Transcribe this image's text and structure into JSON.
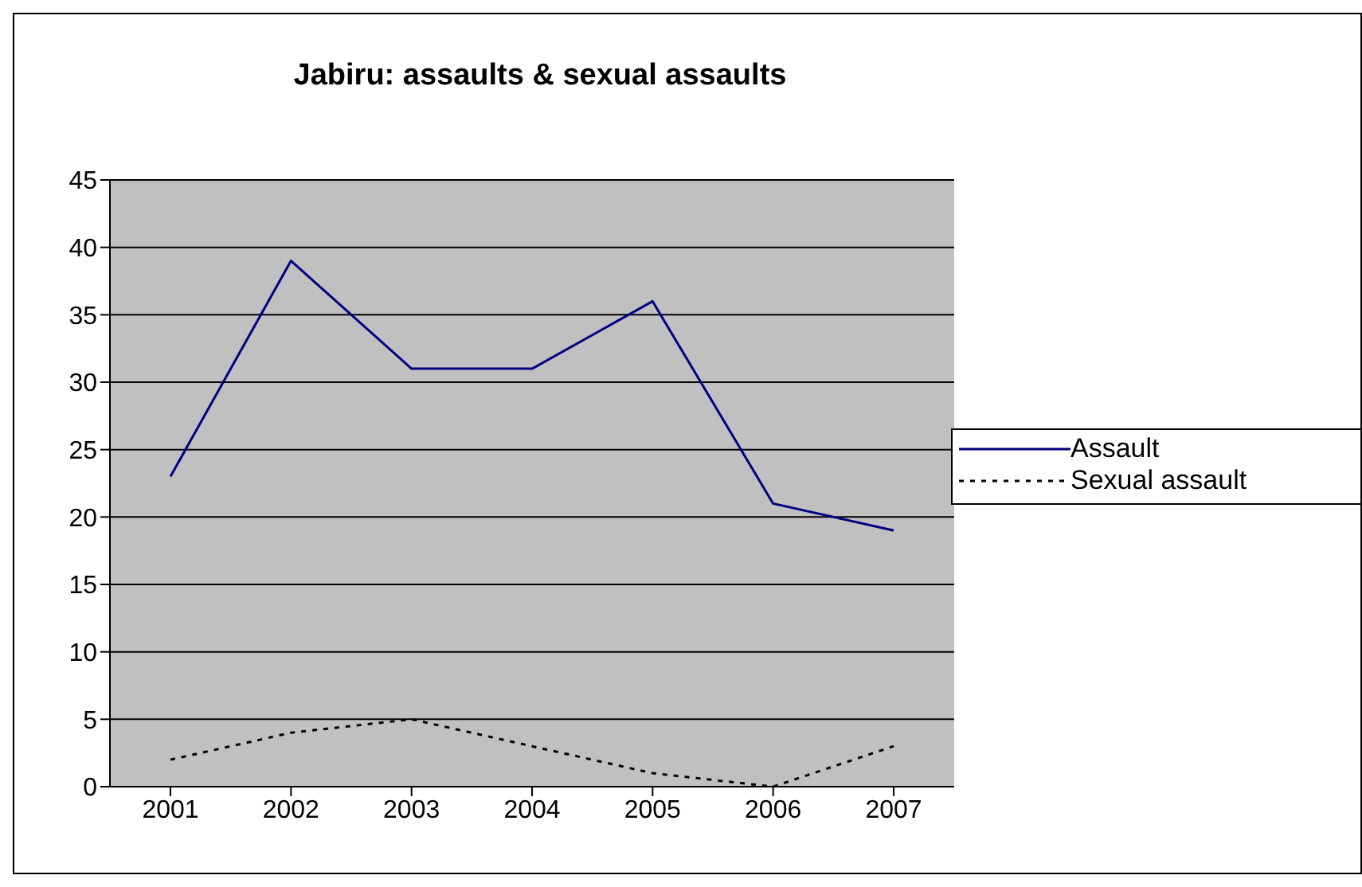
{
  "chart_data": {
    "type": "line",
    "title": "Jabiru: assaults & sexual assaults",
    "categories": [
      "2001",
      "2002",
      "2003",
      "2004",
      "2005",
      "2006",
      "2007"
    ],
    "series": [
      {
        "name": "Assault",
        "color": "#000080",
        "line_style": "solid",
        "values": [
          23,
          39,
          31,
          31,
          36,
          21,
          19
        ]
      },
      {
        "name": "Sexual assault",
        "color": "#000000",
        "line_style": "dotted",
        "values": [
          2,
          4,
          5,
          3,
          1,
          0,
          3
        ]
      }
    ],
    "ylim": [
      0,
      45
    ],
    "yticks": [
      0,
      5,
      10,
      15,
      20,
      25,
      30,
      35,
      40,
      45
    ],
    "grid": "y",
    "legend": "right",
    "marker": "none"
  }
}
